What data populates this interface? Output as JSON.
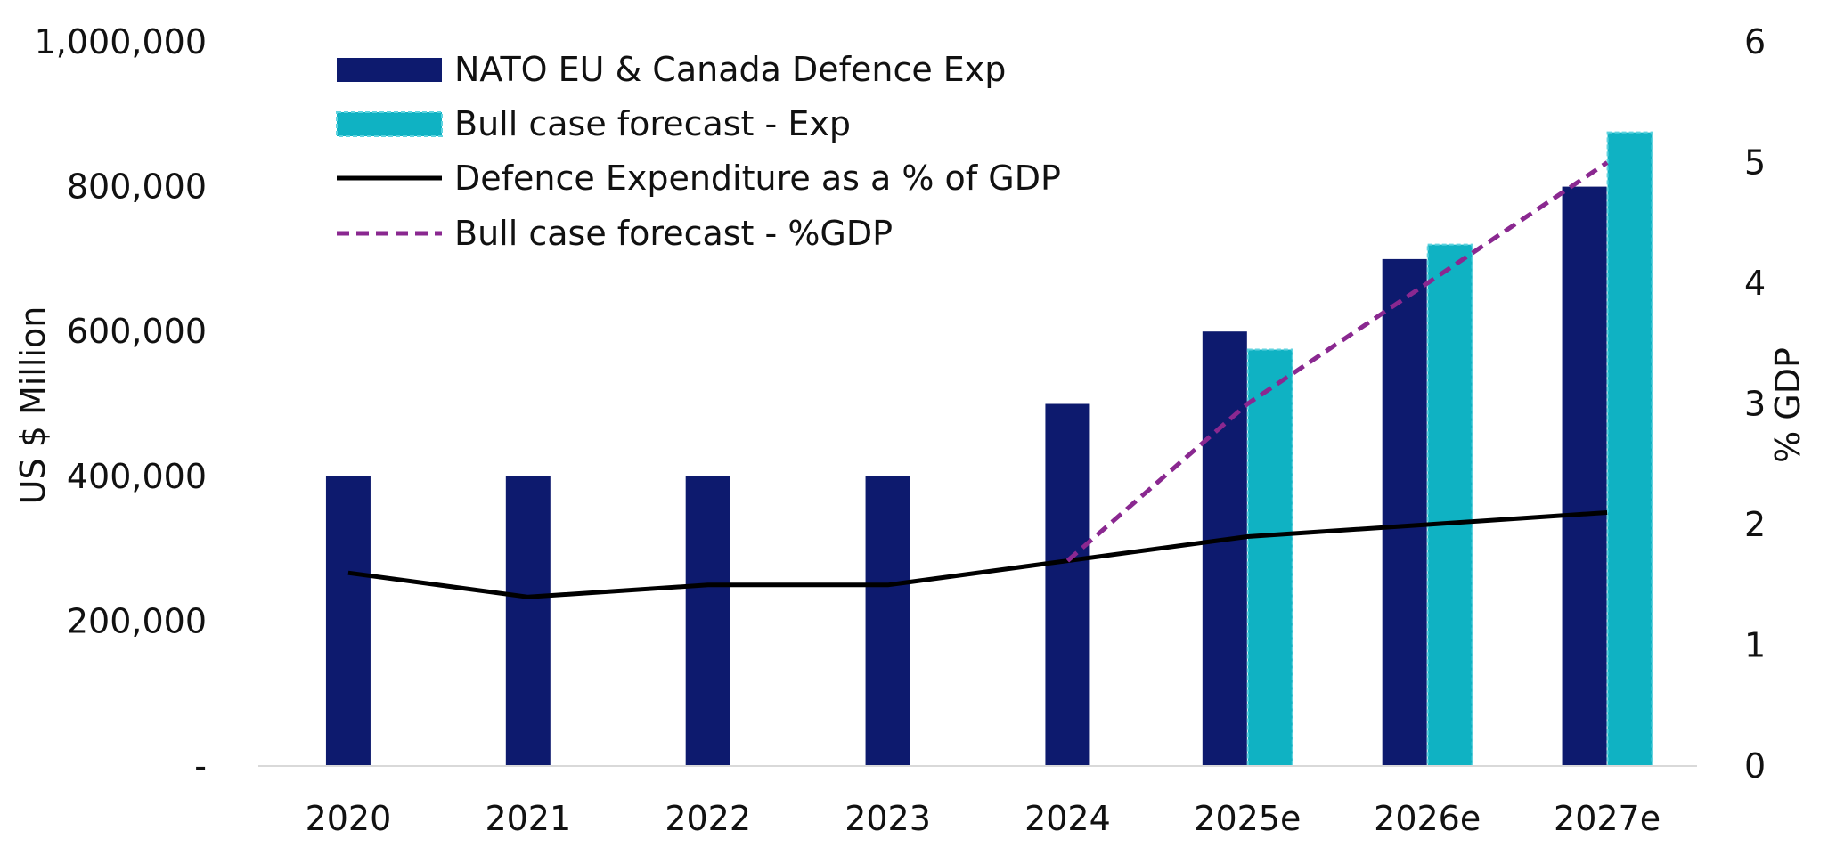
{
  "chart_data": {
    "type": "bar",
    "title": "",
    "categories": [
      "2020",
      "2021",
      "2022",
      "2023",
      "2024",
      "2025e",
      "2026e",
      "2027e"
    ],
    "series": [
      {
        "name": "NATO EU & Canada Defence Exp",
        "kind": "bar",
        "axis": "left",
        "color": "#0d1a6e",
        "values": [
          400000,
          400000,
          400000,
          400000,
          500000,
          600000,
          700000,
          800000
        ]
      },
      {
        "name": "Bull case forecast - Exp",
        "kind": "bar",
        "axis": "left",
        "color": "#0fb2c3",
        "values": [
          null,
          null,
          null,
          null,
          null,
          575000,
          720000,
          875000
        ]
      },
      {
        "name": "Defence Expenditure as a % of GDP",
        "kind": "line",
        "axis": "right",
        "color": "#000000",
        "values": [
          1.6,
          1.4,
          1.5,
          1.5,
          1.7,
          1.9,
          2.0,
          2.1
        ]
      },
      {
        "name": "Bull case forecast - %GDP",
        "kind": "dashed-line",
        "axis": "right",
        "color": "#8a2890",
        "values": [
          null,
          null,
          null,
          null,
          1.7,
          3.0,
          4.0,
          5.0
        ]
      }
    ],
    "y_left": {
      "label": "US $ Million",
      "lim": [
        0,
        1000000
      ],
      "ticks": [
        0,
        200000,
        400000,
        600000,
        800000,
        1000000
      ],
      "tick_labels": [
        "-",
        "200,000",
        "400,000",
        "600,000",
        "800,000",
        "1,000,000"
      ]
    },
    "y_right": {
      "label": "% GDP",
      "lim": [
        0,
        6
      ],
      "ticks": [
        0,
        1,
        2,
        3,
        4,
        5,
        6
      ],
      "tick_labels": [
        "0",
        "1",
        "2",
        "3",
        "4",
        "5",
        "6"
      ]
    },
    "xlabel": "",
    "grid": false,
    "legend_position": "top-left"
  }
}
